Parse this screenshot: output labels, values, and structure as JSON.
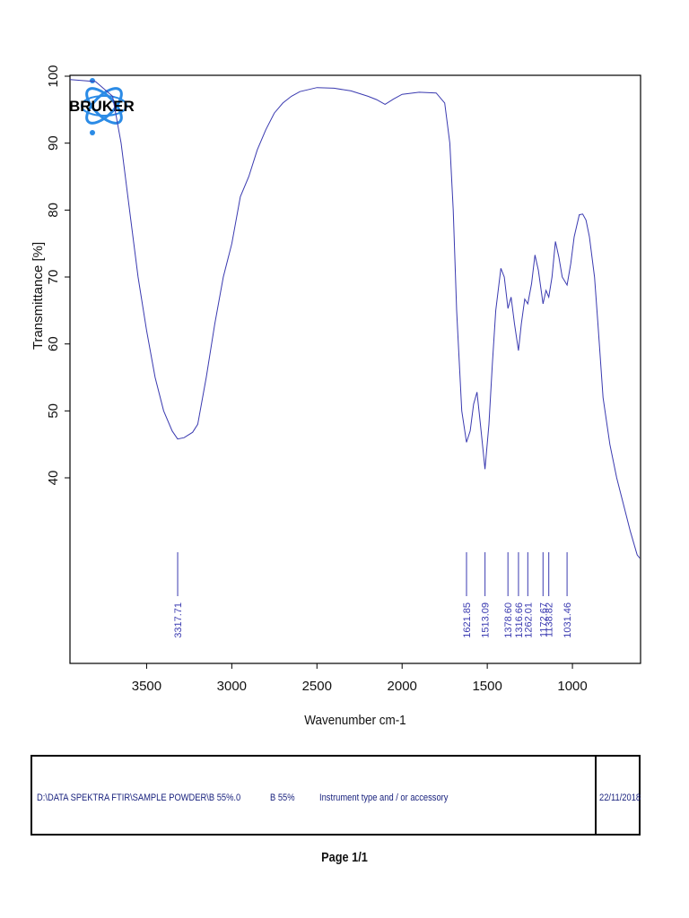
{
  "chart_data": {
    "type": "line",
    "ylabel": "Transmittance [%]",
    "xlabel": "Wavenumber cm-1",
    "xlim": [
      3950,
      600
    ],
    "ylim": [
      20,
      100
    ],
    "x_ticks": [
      3500,
      3000,
      2500,
      2000,
      1500,
      1000
    ],
    "y_ticks": [
      40,
      50,
      60,
      70,
      80,
      90,
      100
    ],
    "series": [
      {
        "color": "#3a3ab0",
        "points": [
          [
            3950,
            99.5
          ],
          [
            3800,
            99.2
          ],
          [
            3700,
            97
          ],
          [
            3650,
            90
          ],
          [
            3600,
            80
          ],
          [
            3550,
            70
          ],
          [
            3500,
            62
          ],
          [
            3450,
            55
          ],
          [
            3400,
            50
          ],
          [
            3350,
            47
          ],
          [
            3317.71,
            45.8
          ],
          [
            3280,
            46.0
          ],
          [
            3230,
            46.8
          ],
          [
            3200,
            48
          ],
          [
            3150,
            55
          ],
          [
            3100,
            63
          ],
          [
            3050,
            70
          ],
          [
            3000,
            75
          ],
          [
            2950,
            82
          ],
          [
            2900,
            85
          ],
          [
            2850,
            89
          ],
          [
            2800,
            92
          ],
          [
            2750,
            94.5
          ],
          [
            2700,
            96
          ],
          [
            2650,
            97
          ],
          [
            2600,
            97.7
          ],
          [
            2500,
            98.3
          ],
          [
            2400,
            98.2
          ],
          [
            2300,
            97.8
          ],
          [
            2200,
            97
          ],
          [
            2150,
            96.5
          ],
          [
            2100,
            95.8
          ],
          [
            2050,
            96.6
          ],
          [
            2000,
            97.3
          ],
          [
            1900,
            97.6
          ],
          [
            1800,
            97.5
          ],
          [
            1750,
            96
          ],
          [
            1720,
            90
          ],
          [
            1700,
            80
          ],
          [
            1680,
            65
          ],
          [
            1650,
            50
          ],
          [
            1621.85,
            45.3
          ],
          [
            1600,
            47
          ],
          [
            1580,
            51
          ],
          [
            1560,
            52.8
          ],
          [
            1540,
            48
          ],
          [
            1513.09,
            41.3
          ],
          [
            1490,
            48
          ],
          [
            1470,
            57
          ],
          [
            1450,
            65
          ],
          [
            1420,
            71.3
          ],
          [
            1400,
            70
          ],
          [
            1378.6,
            65.3
          ],
          [
            1360,
            67
          ],
          [
            1340,
            63
          ],
          [
            1316.66,
            59
          ],
          [
            1300,
            63
          ],
          [
            1280,
            66.7
          ],
          [
            1262.01,
            66
          ],
          [
            1240,
            69
          ],
          [
            1220,
            73.3
          ],
          [
            1200,
            71
          ],
          [
            1172.67,
            66
          ],
          [
            1155,
            68
          ],
          [
            1138.82,
            67
          ],
          [
            1120,
            70
          ],
          [
            1100,
            75.3
          ],
          [
            1080,
            73
          ],
          [
            1060,
            70
          ],
          [
            1031.46,
            68.8
          ],
          [
            1010,
            72
          ],
          [
            990,
            76
          ],
          [
            960,
            79.3
          ],
          [
            940,
            79.4
          ],
          [
            920,
            78.5
          ],
          [
            900,
            76
          ],
          [
            870,
            70
          ],
          [
            850,
            63
          ],
          [
            820,
            52
          ],
          [
            780,
            45
          ],
          [
            740,
            40
          ],
          [
            700,
            36
          ],
          [
            660,
            32
          ],
          [
            620,
            28.5
          ],
          [
            605,
            28
          ]
        ]
      }
    ],
    "peak_labels": [
      "3317.71",
      "1621.85",
      "1513.09",
      "1378.60",
      "1316.66",
      "1262.01",
      "1172.67",
      "1138.82",
      "1031.46"
    ],
    "peaks": [
      3317.71,
      1621.85,
      1513.09,
      1378.6,
      1316.66,
      1262.01,
      1172.67,
      1138.82,
      1031.46
    ]
  },
  "logo": {
    "text": "BRUKER"
  },
  "info": {
    "path": "D:\\DATA SPEKTRA FTIR\\SAMPLE POWDER\\B 55%.0",
    "sample": "B 55%",
    "instrument": "Instrument type and / or accessory",
    "date": "22/11/2018"
  },
  "page": {
    "label": "Page 1/1"
  }
}
